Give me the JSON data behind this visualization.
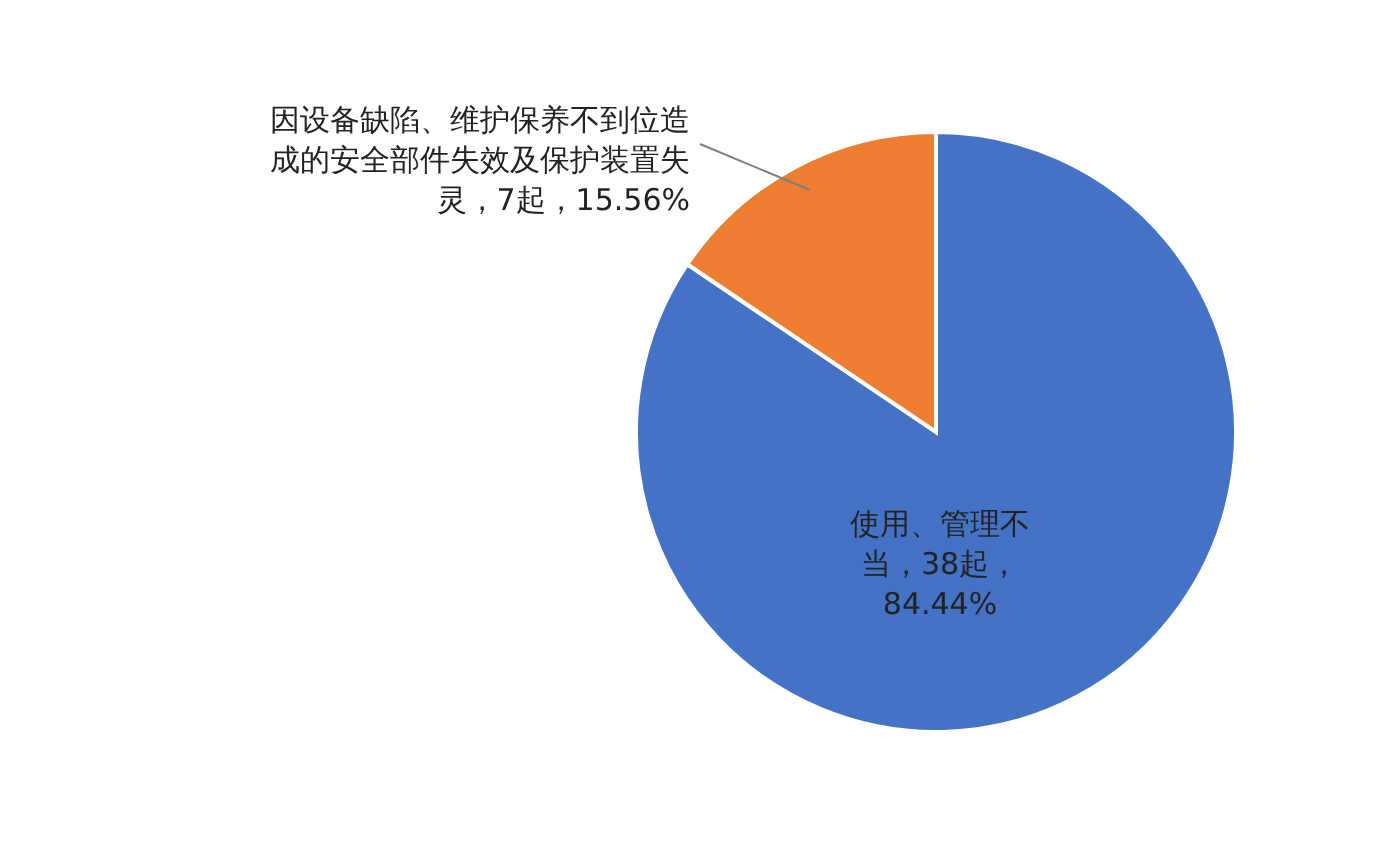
{
  "chart_data": {
    "type": "pie",
    "categories": [
      "使用、管理不当",
      "因设备缺陷、维护保养不到位造成的安全部件失效及保护装置失灵"
    ],
    "values": [
      38,
      7
    ],
    "value_labels": [
      "38起，84.44%",
      "7起，15.56%"
    ],
    "colors": [
      "#4472c4",
      "#ed7d31"
    ]
  }
}
